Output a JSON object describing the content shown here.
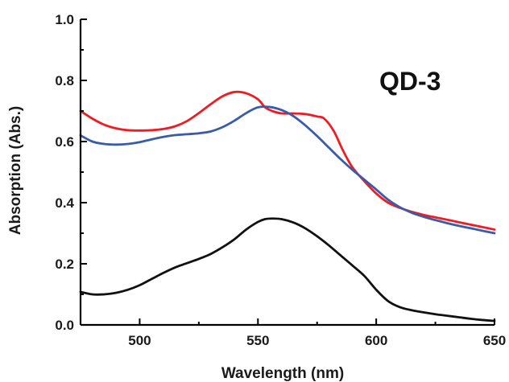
{
  "chart_data": {
    "type": "line",
    "title": "",
    "annotation": "QD-3",
    "xlabel": "Wavelength (nm)",
    "ylabel": "Absorption (Abs.)",
    "xlim": [
      475,
      650
    ],
    "ylim": [
      0.0,
      1.0
    ],
    "x_ticks": [
      500,
      550,
      600,
      650
    ],
    "x_tick_labels": [
      "500",
      "550",
      "600",
      "650"
    ],
    "y_ticks": [
      0.0,
      0.2,
      0.4,
      0.6,
      0.8,
      1.0
    ],
    "y_tick_labels": [
      "0.0",
      "0.2",
      "0.4",
      "0.6",
      "0.8",
      "1.0"
    ],
    "grid": false,
    "legend": "none",
    "series": [
      {
        "color": "#ee1c24",
        "x": [
          475,
          480,
          485,
          490,
          495,
          500,
          505,
          510,
          515,
          520,
          525,
          530,
          535,
          540,
          545,
          550,
          553,
          556,
          560,
          565,
          570,
          575,
          578,
          582,
          586,
          590,
          595,
          600,
          605,
          610,
          615,
          620,
          625,
          630,
          635,
          640,
          645,
          650
        ],
        "y": [
          0.7,
          0.675,
          0.655,
          0.643,
          0.637,
          0.636,
          0.637,
          0.641,
          0.65,
          0.667,
          0.693,
          0.722,
          0.748,
          0.762,
          0.758,
          0.738,
          0.712,
          0.7,
          0.692,
          0.692,
          0.69,
          0.682,
          0.675,
          0.635,
          0.57,
          0.515,
          0.47,
          0.43,
          0.4,
          0.383,
          0.37,
          0.36,
          0.352,
          0.344,
          0.336,
          0.328,
          0.32,
          0.312
        ]
      },
      {
        "color": "#3a5ba8",
        "x": [
          475,
          480,
          485,
          490,
          495,
          500,
          505,
          510,
          515,
          520,
          525,
          530,
          535,
          540,
          545,
          550,
          555,
          560,
          565,
          570,
          575,
          580,
          585,
          590,
          595,
          600,
          605,
          610,
          615,
          620,
          625,
          630,
          635,
          640,
          645,
          650
        ],
        "y": [
          0.62,
          0.6,
          0.592,
          0.59,
          0.592,
          0.598,
          0.607,
          0.615,
          0.621,
          0.624,
          0.627,
          0.633,
          0.647,
          0.668,
          0.693,
          0.712,
          0.713,
          0.703,
          0.683,
          0.653,
          0.618,
          0.58,
          0.542,
          0.507,
          0.475,
          0.443,
          0.41,
          0.385,
          0.367,
          0.354,
          0.343,
          0.333,
          0.324,
          0.316,
          0.308,
          0.3
        ]
      },
      {
        "color": "#111111",
        "x": [
          475,
          480,
          485,
          490,
          495,
          500,
          505,
          510,
          515,
          520,
          525,
          530,
          535,
          540,
          545,
          550,
          553,
          556,
          560,
          565,
          570,
          575,
          580,
          585,
          590,
          595,
          600,
          605,
          610,
          615,
          620,
          625,
          630,
          635,
          640,
          645,
          650
        ],
        "y": [
          0.108,
          0.1,
          0.1,
          0.105,
          0.115,
          0.13,
          0.15,
          0.17,
          0.188,
          0.202,
          0.216,
          0.232,
          0.254,
          0.28,
          0.312,
          0.337,
          0.346,
          0.348,
          0.346,
          0.335,
          0.316,
          0.29,
          0.26,
          0.227,
          0.194,
          0.16,
          0.115,
          0.078,
          0.058,
          0.048,
          0.041,
          0.035,
          0.03,
          0.025,
          0.02,
          0.016,
          0.013
        ]
      }
    ]
  }
}
